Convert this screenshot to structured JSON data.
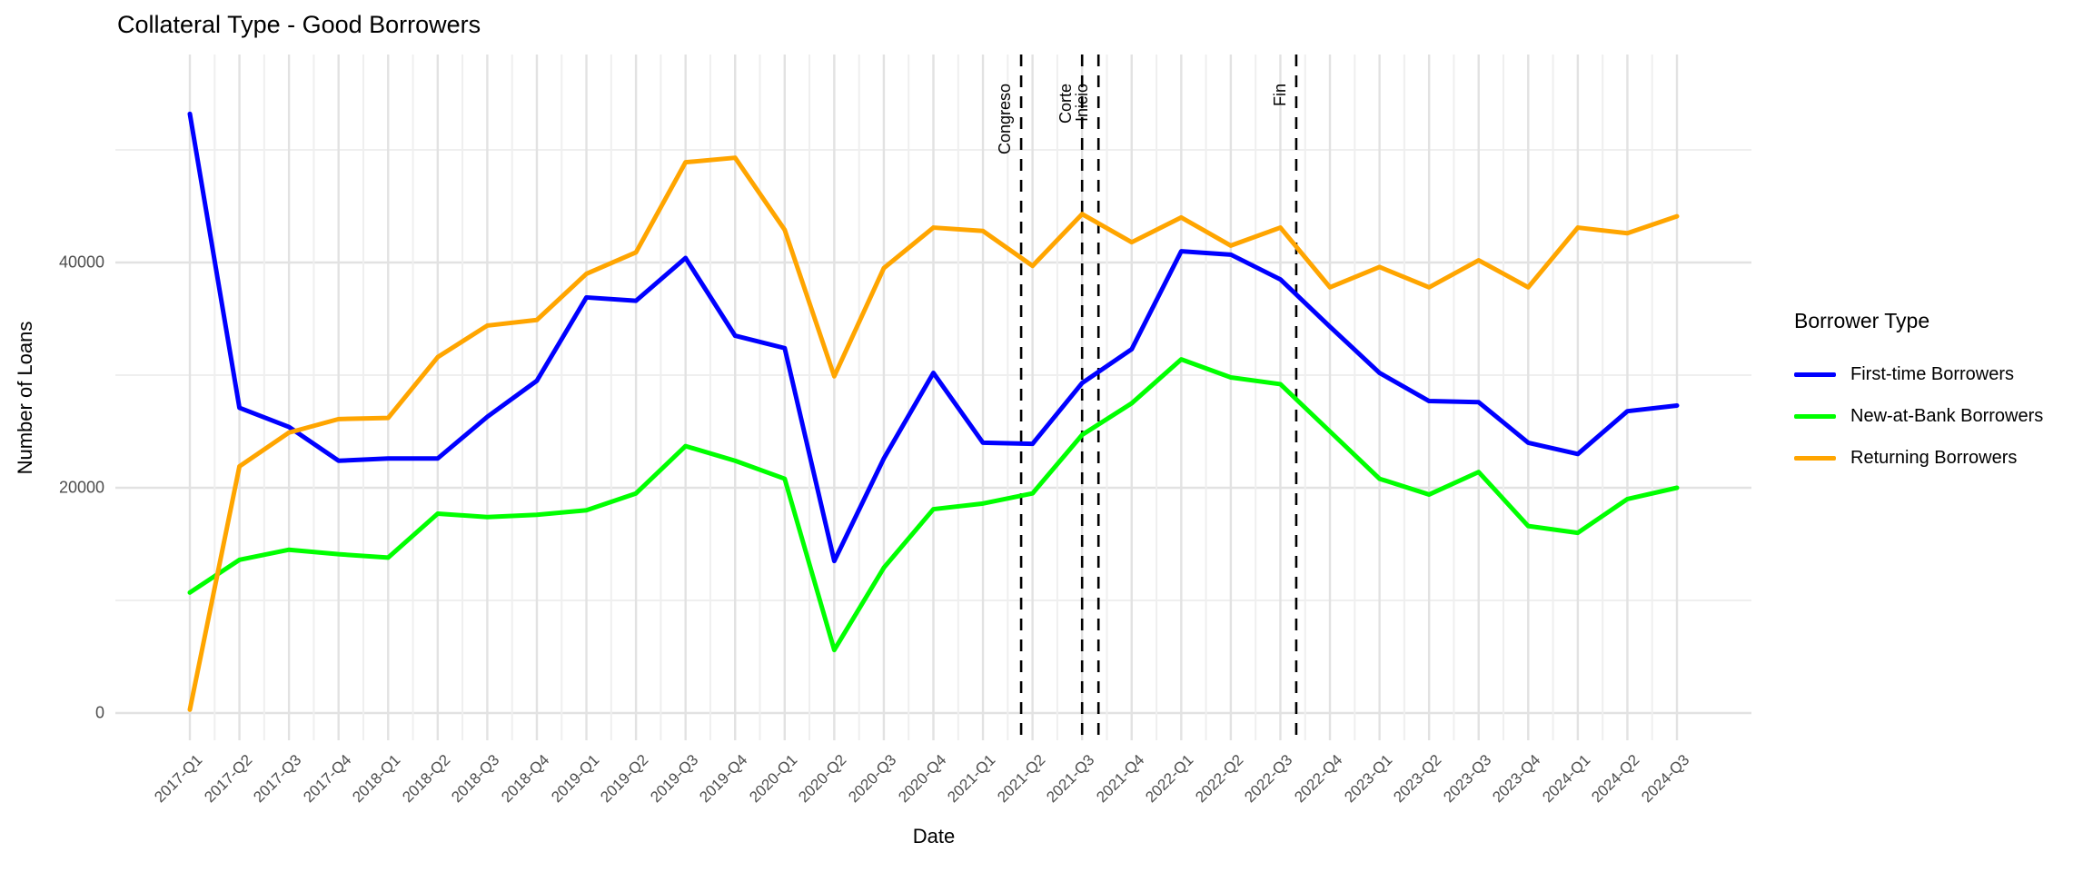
{
  "title": "Collateral Type - Good Borrowers",
  "x_axis": {
    "label": "Date"
  },
  "y_axis": {
    "label": "Number of Loans"
  },
  "legend": {
    "title": "Borrower Type",
    "items": [
      {
        "label": "First-time Borrowers",
        "color": "#0000FF"
      },
      {
        "label": "New-at-Bank Borrowers",
        "color": "#00FF00"
      },
      {
        "label": "Returning Borrowers",
        "color": "#FFA500"
      }
    ]
  },
  "chart_data": {
    "type": "line",
    "title": "Collateral Type - Good Borrowers",
    "xlabel": "Date",
    "ylabel": "Number of Loans",
    "legend_title": "Borrower Type",
    "legend_position": "right",
    "grid": "on",
    "ylim": [
      0,
      55000
    ],
    "y_major_ticks": [
      0,
      20000,
      40000
    ],
    "y_minor_gridlines": [
      10000,
      30000,
      50000
    ],
    "categories": [
      "2017-Q1",
      "2017-Q2",
      "2017-Q3",
      "2017-Q4",
      "2018-Q1",
      "2018-Q2",
      "2018-Q3",
      "2018-Q4",
      "2019-Q1",
      "2019-Q2",
      "2019-Q3",
      "2019-Q4",
      "2020-Q1",
      "2020-Q2",
      "2020-Q3",
      "2020-Q4",
      "2021-Q1",
      "2021-Q2",
      "2021-Q3",
      "2021-Q4",
      "2022-Q1",
      "2022-Q2",
      "2022-Q3",
      "2022-Q4",
      "2023-Q1",
      "2023-Q2",
      "2023-Q3",
      "2023-Q4",
      "2024-Q1",
      "2024-Q2",
      "2024-Q3"
    ],
    "series": [
      {
        "name": "First-time Borrowers",
        "color": "#0000FF",
        "values": [
          53200,
          27100,
          25400,
          22400,
          22600,
          22600,
          26300,
          29500,
          36900,
          36600,
          40400,
          33500,
          32400,
          13500,
          22600,
          30200,
          24000,
          23900,
          29300,
          32300,
          41000,
          40700,
          38500,
          34300,
          30200,
          27700,
          27600,
          24000,
          23000,
          26800,
          27300
        ]
      },
      {
        "name": "New-at-Bank Borrowers",
        "color": "#00FF00",
        "values": [
          10700,
          13600,
          14500,
          14100,
          13800,
          17700,
          17400,
          17600,
          18000,
          19500,
          23700,
          22400,
          20800,
          5600,
          12900,
          18100,
          18600,
          19500,
          24700,
          27500,
          31400,
          29800,
          29200,
          25000,
          20800,
          19400,
          21400,
          16600,
          16000,
          19000,
          20000
        ]
      },
      {
        "name": "Returning Borrowers",
        "color": "#FFA500",
        "values": [
          300,
          21900,
          24900,
          26100,
          26200,
          31600,
          34400,
          34900,
          39000,
          40900,
          48900,
          49300,
          42900,
          29900,
          39500,
          43100,
          42800,
          39700,
          44300,
          41800,
          44000,
          41500,
          43100,
          37800,
          39600,
          37800,
          40200,
          37800,
          43100,
          42600,
          44100
        ]
      }
    ],
    "event_lines": [
      {
        "label": "Congreso",
        "t": 16.77
      },
      {
        "label": "Corte",
        "t": 18.0
      },
      {
        "label": "Inicio",
        "t": 18.33
      },
      {
        "label": "Fin",
        "t": 22.32
      }
    ]
  }
}
